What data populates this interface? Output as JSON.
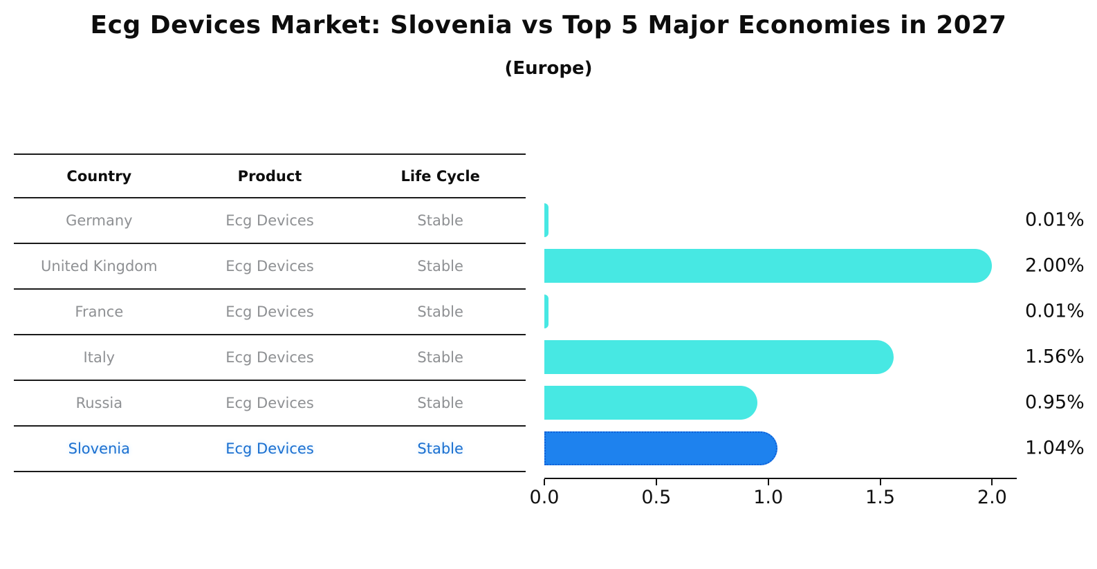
{
  "header": {
    "title": "Ecg Devices Market: Slovenia vs Top 5 Major Economies in 2027",
    "subtitle": "(Europe)"
  },
  "table": {
    "columns": [
      "Country",
      "Product",
      "Life Cycle"
    ],
    "rows": [
      {
        "country": "Germany",
        "product": "Ecg Devices",
        "life_cycle": "Stable"
      },
      {
        "country": "United Kingdom",
        "product": "Ecg Devices",
        "life_cycle": "Stable"
      },
      {
        "country": "France",
        "product": "Ecg Devices",
        "life_cycle": "Stable"
      },
      {
        "country": "Italy",
        "product": "Ecg Devices",
        "life_cycle": "Stable"
      },
      {
        "country": "Russia",
        "product": "Ecg Devices",
        "life_cycle": "Stable"
      },
      {
        "country": "Slovenia",
        "product": "Ecg Devices",
        "life_cycle": "Stable"
      }
    ]
  },
  "chart_data": {
    "type": "bar",
    "orientation": "horizontal",
    "title": "Ecg Devices Market: Slovenia vs Top 5 Major Economies in 2027",
    "subtitle": "(Europe)",
    "categories": [
      "Germany",
      "United Kingdom",
      "France",
      "Italy",
      "Russia",
      "Slovenia"
    ],
    "values": [
      0.01,
      2.0,
      0.01,
      1.56,
      0.95,
      1.04
    ],
    "value_labels": [
      "0.01%",
      "2.00%",
      "0.01%",
      "1.56%",
      "0.95%",
      "1.04%"
    ],
    "xlabel": "",
    "ylabel": "",
    "xlim": [
      0,
      2.11
    ],
    "x_ticks": [
      0,
      0.5,
      1.0,
      1.5,
      2.0
    ],
    "x_tick_labels": [
      "0.0",
      "0.5",
      "1.0",
      "1.5",
      "2.0"
    ],
    "grid": false,
    "legend": false,
    "bar_color": "#47E8E3",
    "highlight_color": "#1E82EE",
    "highlight_border_color": "#0F5FD7",
    "highlight_index": 5,
    "highlight_text_color": "#1a6fd0"
  }
}
